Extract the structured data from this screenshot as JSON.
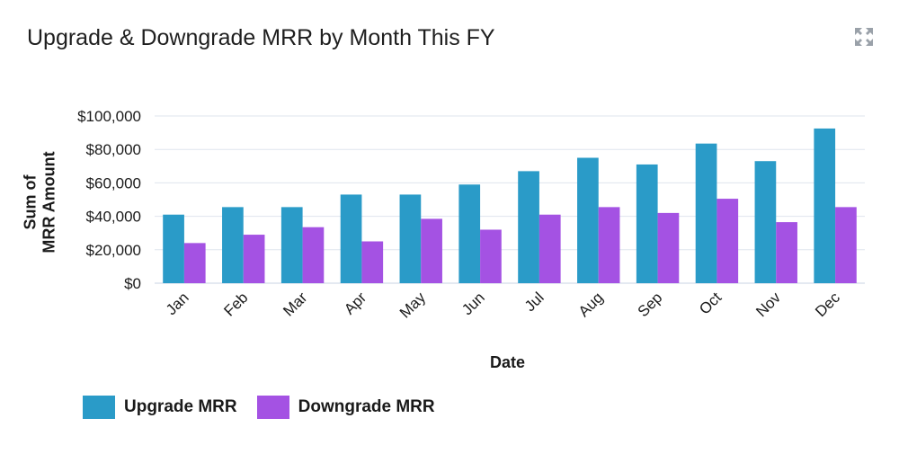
{
  "header": {
    "title": "Upgrade & Downgrade MRR by Month This FY",
    "expand_icon": "expand-icon"
  },
  "colors": {
    "upgrade": "#2a9bc8",
    "downgrade": "#a452e3",
    "grid": "#dfe5ee",
    "axis": "#c9d3e3"
  },
  "chart_data": {
    "type": "bar",
    "title": "Upgrade & Downgrade MRR by Month This FY",
    "xlabel": "Date",
    "ylabel_lines": [
      "Sum of",
      "MRR Amount"
    ],
    "categories": [
      "Jan",
      "Feb",
      "Mar",
      "Apr",
      "May",
      "Jun",
      "Jul",
      "Aug",
      "Sep",
      "Oct",
      "Nov",
      "Dec"
    ],
    "series": [
      {
        "name": "Upgrade MRR",
        "values": [
          41000,
          45500,
          45500,
          53000,
          53000,
          59000,
          67000,
          75000,
          71000,
          83500,
          73000,
          92500
        ]
      },
      {
        "name": "Downgrade MRR",
        "values": [
          24000,
          29000,
          33500,
          25000,
          38500,
          32000,
          41000,
          45500,
          42000,
          50500,
          36500,
          45500
        ]
      }
    ],
    "yticks": [
      "$0",
      "$20,000",
      "$40,000",
      "$60,000",
      "$80,000",
      "$100,000"
    ],
    "ytick_values": [
      0,
      20000,
      40000,
      60000,
      80000,
      100000
    ],
    "ylim": [
      0,
      100000
    ],
    "grid": true,
    "legend_position": "bottom-left"
  }
}
